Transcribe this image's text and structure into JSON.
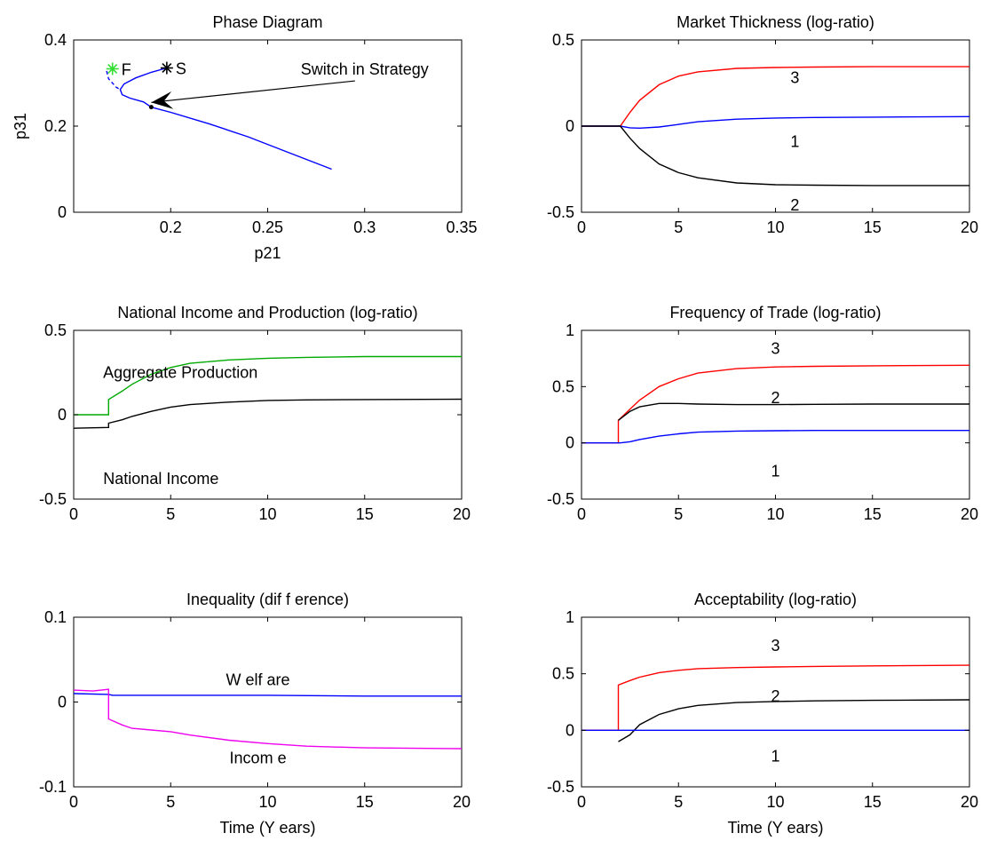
{
  "chart_data": [
    {
      "id": "phase",
      "type": "line",
      "title": "Phase Diagram",
      "xlabel": "p21",
      "ylabel": "p31",
      "xlim": [
        0.15,
        0.35
      ],
      "ylim": [
        0,
        0.4
      ],
      "xticks": [
        0.2,
        0.25,
        0.3,
        0.35
      ],
      "xtick_labels": [
        "0.2",
        "0.25",
        "0.3",
        "0.35"
      ],
      "yticks": [
        0,
        0.2,
        0.4
      ],
      "ytick_labels": [
        "0",
        "0.2",
        "0.4"
      ],
      "series": [
        {
          "color": "#0000ff",
          "points": [
            [
              0.198,
              0.335
            ],
            [
              0.19,
              0.325
            ],
            [
              0.182,
              0.312
            ],
            [
              0.176,
              0.298
            ],
            [
              0.174,
              0.285
            ],
            [
              0.175,
              0.273
            ],
            [
              0.179,
              0.265
            ],
            [
              0.186,
              0.256
            ],
            [
              0.19,
              0.244
            ],
            [
              0.2,
              0.232
            ],
            [
              0.22,
              0.205
            ],
            [
              0.24,
              0.175
            ],
            [
              0.26,
              0.14
            ],
            [
              0.283,
              0.1
            ]
          ]
        },
        {
          "color": "#0000ff",
          "dash": true,
          "points": [
            [
              0.167,
              0.328
            ],
            [
              0.168,
              0.31
            ],
            [
              0.172,
              0.29
            ],
            [
              0.174,
              0.285
            ]
          ]
        }
      ],
      "markers": [
        {
          "x": 0.17,
          "y": 0.333,
          "symbol": "star",
          "color": "#33dd33",
          "label": "F"
        },
        {
          "x": 0.198,
          "y": 0.335,
          "symbol": "star",
          "color": "#000000",
          "label": "S"
        },
        {
          "x": 0.19,
          "y": 0.244,
          "symbol": "dot",
          "color": "#000000"
        }
      ],
      "annotations": [
        {
          "text": "Switch in Strategy",
          "x": 0.3,
          "y": 0.32
        }
      ],
      "arrow": {
        "from": [
          0.295,
          0.305
        ],
        "to": [
          0.19,
          0.255
        ]
      }
    },
    {
      "id": "thickness",
      "type": "line",
      "title": "Market Thickness (log-ratio)",
      "xlim": [
        0,
        20
      ],
      "ylim": [
        -0.5,
        0.5
      ],
      "xticks": [
        0,
        5,
        10,
        15,
        20
      ],
      "xtick_labels": [
        "0",
        "5",
        "10",
        "15",
        "20"
      ],
      "yticks": [
        -0.5,
        0,
        0.5
      ],
      "ytick_labels": [
        "-0.5",
        "0",
        "0.5"
      ],
      "series": [
        {
          "name": "3",
          "color": "#ff0000",
          "x": [
            0,
            2,
            2.5,
            3,
            4,
            5,
            6,
            8,
            10,
            12,
            15,
            20
          ],
          "y": [
            0,
            0,
            0.08,
            0.15,
            0.24,
            0.29,
            0.315,
            0.335,
            0.34,
            0.343,
            0.345,
            0.345
          ]
        },
        {
          "name": "1",
          "color": "#0000ff",
          "x": [
            0,
            2,
            2.5,
            3,
            4,
            5,
            6,
            8,
            10,
            12,
            15,
            20
          ],
          "y": [
            0,
            0,
            -0.01,
            -0.012,
            -0.005,
            0.01,
            0.025,
            0.04,
            0.047,
            0.05,
            0.052,
            0.055
          ]
        },
        {
          "name": "2",
          "color": "#000000",
          "x": [
            0,
            2,
            2.5,
            3,
            4,
            5,
            6,
            8,
            10,
            12,
            15,
            20
          ],
          "y": [
            0,
            0,
            -0.07,
            -0.13,
            -0.22,
            -0.27,
            -0.3,
            -0.33,
            -0.34,
            -0.343,
            -0.345,
            -0.345
          ]
        }
      ],
      "labels": [
        {
          "text": "3",
          "x": 11,
          "y": 0.28
        },
        {
          "text": "1",
          "x": 11,
          "y": -0.09
        },
        {
          "text": "2",
          "x": 11,
          "y": -0.46
        }
      ]
    },
    {
      "id": "income",
      "type": "line",
      "title": "National Income and Production (log-ratio)",
      "xlim": [
        0,
        20
      ],
      "ylim": [
        -0.5,
        0.5
      ],
      "xticks": [
        0,
        5,
        10,
        15,
        20
      ],
      "xtick_labels": [
        "0",
        "5",
        "10",
        "15",
        "20"
      ],
      "yticks": [
        -0.5,
        0,
        0.5
      ],
      "ytick_labels": [
        "-0.5",
        "0",
        "0.5"
      ],
      "series": [
        {
          "name": "Aggregate Production",
          "color": "#00aa00",
          "x": [
            0,
            1.8,
            1.8,
            2.5,
            3,
            4,
            5,
            6,
            8,
            10,
            12,
            15,
            20
          ],
          "y": [
            0,
            0,
            0.09,
            0.14,
            0.18,
            0.24,
            0.28,
            0.305,
            0.325,
            0.335,
            0.34,
            0.345,
            0.345
          ]
        },
        {
          "name": "National Income",
          "color": "#000000",
          "x": [
            0,
            1.8,
            1.8,
            2.5,
            3,
            4,
            5,
            6,
            8,
            10,
            12,
            15,
            20
          ],
          "y": [
            -0.08,
            -0.075,
            -0.05,
            -0.03,
            -0.01,
            0.02,
            0.045,
            0.06,
            0.075,
            0.085,
            0.088,
            0.09,
            0.092
          ]
        }
      ],
      "labels": [
        {
          "text": "Aggregate Production",
          "x": 5.5,
          "y": 0.25
        },
        {
          "text": "National Income",
          "x": 4.5,
          "y": -0.38
        }
      ]
    },
    {
      "id": "frequency",
      "type": "line",
      "title": "Frequency of Trade (log-ratio)",
      "xlim": [
        0,
        20
      ],
      "ylim": [
        -0.5,
        1
      ],
      "xticks": [
        0,
        5,
        10,
        15,
        20
      ],
      "xtick_labels": [
        "0",
        "5",
        "10",
        "15",
        "20"
      ],
      "yticks": [
        -0.5,
        0,
        0.5,
        1
      ],
      "ytick_labels": [
        "-0.5",
        "0",
        "0.5",
        "1"
      ],
      "series": [
        {
          "name": "3",
          "color": "#ff0000",
          "x": [
            0,
            1.9,
            1.9,
            2.5,
            3,
            4,
            5,
            6,
            8,
            10,
            12,
            15,
            20
          ],
          "y": [
            0,
            0,
            0.2,
            0.3,
            0.38,
            0.5,
            0.57,
            0.62,
            0.66,
            0.675,
            0.68,
            0.685,
            0.69
          ]
        },
        {
          "name": "2",
          "color": "#000000",
          "x": [
            1.9,
            2.5,
            3,
            4,
            5,
            6,
            8,
            10,
            12,
            15,
            20
          ],
          "y": [
            0.2,
            0.28,
            0.32,
            0.35,
            0.35,
            0.345,
            0.34,
            0.34,
            0.342,
            0.345,
            0.345
          ]
        },
        {
          "name": "1",
          "color": "#0000ff",
          "x": [
            0,
            2,
            2.5,
            3,
            4,
            5,
            6,
            8,
            10,
            12,
            15,
            20
          ],
          "y": [
            0,
            0,
            0.01,
            0.03,
            0.06,
            0.08,
            0.095,
            0.105,
            0.108,
            0.11,
            0.11,
            0.11
          ]
        }
      ],
      "labels": [
        {
          "text": "3",
          "x": 10,
          "y": 0.84
        },
        {
          "text": "2",
          "x": 10,
          "y": 0.4
        },
        {
          "text": "1",
          "x": 10,
          "y": -0.25
        }
      ]
    },
    {
      "id": "inequality",
      "type": "line",
      "title": "Inequality (dif f erence)",
      "xlabel": "Time (Y ears)",
      "xlim": [
        0,
        20
      ],
      "ylim": [
        -0.1,
        0.1
      ],
      "xticks": [
        0,
        5,
        10,
        15,
        20
      ],
      "xtick_labels": [
        "0",
        "5",
        "10",
        "15",
        "20"
      ],
      "yticks": [
        -0.1,
        0,
        0.1
      ],
      "ytick_labels": [
        "-0.1",
        "0",
        "0.1"
      ],
      "series": [
        {
          "name": "Welfare",
          "color": "#0000ff",
          "x": [
            0,
            1.8,
            2,
            5,
            10,
            15,
            20
          ],
          "y": [
            0.01,
            0.009,
            0.008,
            0.008,
            0.008,
            0.007,
            0.007
          ]
        },
        {
          "name": "Income",
          "color": "#ee00ee",
          "x": [
            0,
            1,
            1.8,
            1.8,
            2.5,
            3,
            4,
            5,
            6,
            8,
            10,
            12,
            15,
            20
          ],
          "y": [
            0.014,
            0.013,
            0.015,
            -0.02,
            -0.027,
            -0.031,
            -0.033,
            -0.035,
            -0.039,
            -0.045,
            -0.049,
            -0.052,
            -0.054,
            -0.055
          ]
        }
      ],
      "labels": [
        {
          "text": "W elf are",
          "x": 9.5,
          "y": 0.026
        },
        {
          "text": "Incom e",
          "x": 9.5,
          "y": -0.066
        }
      ]
    },
    {
      "id": "acceptability",
      "type": "line",
      "title": "Acceptability (log-ratio)",
      "xlabel": "Time (Y ears)",
      "xlim": [
        0,
        20
      ],
      "ylim": [
        -0.5,
        1
      ],
      "xticks": [
        0,
        5,
        10,
        15,
        20
      ],
      "xtick_labels": [
        "0",
        "5",
        "10",
        "15",
        "20"
      ],
      "yticks": [
        -0.5,
        0,
        0.5,
        1
      ],
      "ytick_labels": [
        "-0.5",
        "0",
        "0.5",
        "1"
      ],
      "series": [
        {
          "name": "3",
          "color": "#ff0000",
          "x": [
            0,
            1.9,
            1.9,
            2.5,
            3,
            4,
            5,
            6,
            8,
            10,
            12,
            15,
            20
          ],
          "y": [
            0,
            0,
            0.4,
            0.44,
            0.47,
            0.51,
            0.53,
            0.545,
            0.555,
            0.56,
            0.565,
            0.57,
            0.575
          ]
        },
        {
          "name": "2",
          "color": "#000000",
          "x": [
            1.9,
            2.5,
            3,
            4,
            5,
            6,
            8,
            10,
            12,
            15,
            20
          ],
          "y": [
            -0.1,
            -0.04,
            0.05,
            0.14,
            0.19,
            0.22,
            0.245,
            0.255,
            0.26,
            0.265,
            0.27
          ]
        },
        {
          "name": "1",
          "color": "#0000ff",
          "x": [
            0,
            20
          ],
          "y": [
            0,
            0
          ]
        }
      ],
      "labels": [
        {
          "text": "3",
          "x": 10,
          "y": 0.75
        },
        {
          "text": "2",
          "x": 10,
          "y": 0.3
        },
        {
          "text": "1",
          "x": 10,
          "y": -0.23
        }
      ]
    }
  ]
}
